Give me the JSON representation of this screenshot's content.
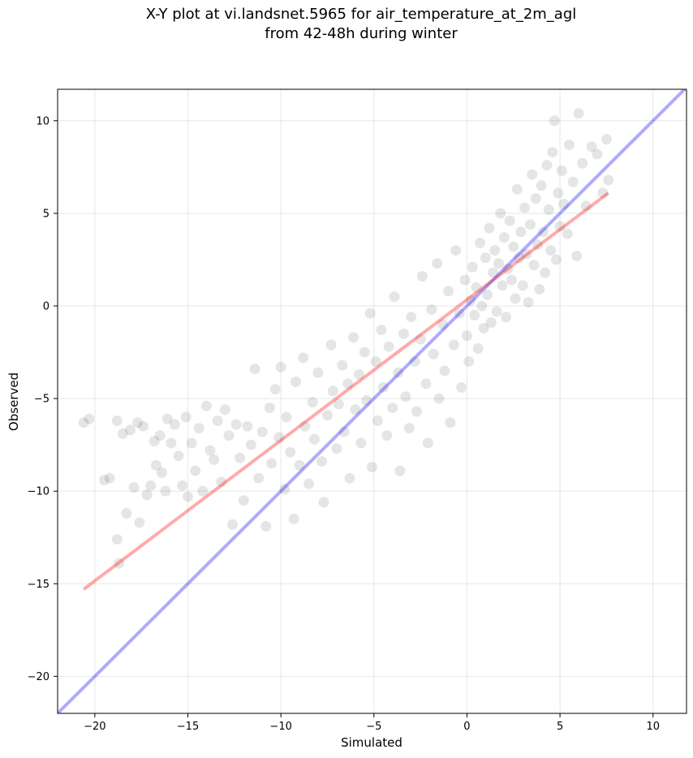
{
  "chart_data": {
    "type": "scatter",
    "title": "X-Y plot at vi.landsnet.5965 for air_temperature_at_2m_agl",
    "subtitle": "from 42-48h during winter",
    "xlabel": "Simulated",
    "ylabel": "Observed",
    "xlim": [
      -22,
      11.8
    ],
    "ylim": [
      -22,
      11.7
    ],
    "xticks": [
      -20,
      -15,
      -10,
      -5,
      0,
      5,
      10
    ],
    "yticks": [
      -20,
      -15,
      -10,
      -5,
      0,
      5,
      10
    ],
    "grid": true,
    "lines": [
      {
        "role": "one-to-one",
        "color": "#0000ff",
        "points": [
          [
            -22,
            -22
          ],
          [
            11.8,
            11.8
          ]
        ]
      },
      {
        "role": "regression-fit",
        "color": "#ff0000",
        "points": [
          [
            -20.6,
            -15.3
          ],
          [
            7.6,
            6.1
          ]
        ]
      }
    ],
    "point_color": "#000000",
    "points_sample": [
      [
        -20.6,
        -6.3
      ],
      [
        -20.3,
        -6.1
      ],
      [
        -19.5,
        -9.4
      ],
      [
        -19.2,
        -9.3
      ],
      [
        -18.8,
        -12.6
      ],
      [
        -18.7,
        -13.9
      ],
      [
        -18.8,
        -6.2
      ],
      [
        -18.5,
        -6.9
      ],
      [
        -18.3,
        -11.2
      ],
      [
        -18.1,
        -6.7
      ],
      [
        -17.9,
        -9.8
      ],
      [
        -17.7,
        -6.3
      ],
      [
        -17.6,
        -11.7
      ],
      [
        -17.4,
        -6.5
      ],
      [
        -17.2,
        -10.2
      ],
      [
        -17.0,
        -9.7
      ],
      [
        -16.8,
        -7.3
      ],
      [
        -16.7,
        -8.6
      ],
      [
        -16.5,
        -7.0
      ],
      [
        -16.4,
        -9.0
      ],
      [
        -16.2,
        -10.0
      ],
      [
        -16.1,
        -6.1
      ],
      [
        -15.9,
        -7.4
      ],
      [
        -15.7,
        -6.4
      ],
      [
        -15.5,
        -8.1
      ],
      [
        -15.3,
        -9.7
      ],
      [
        -15.1,
        -6.0
      ],
      [
        -15.0,
        -10.3
      ],
      [
        -14.8,
        -7.4
      ],
      [
        -14.6,
        -8.9
      ],
      [
        -14.4,
        -6.6
      ],
      [
        -14.2,
        -10.0
      ],
      [
        -14.0,
        -5.4
      ],
      [
        -13.8,
        -7.8
      ],
      [
        -13.6,
        -8.3
      ],
      [
        -13.4,
        -6.2
      ],
      [
        -13.2,
        -9.5
      ],
      [
        -13.0,
        -5.6
      ],
      [
        -12.8,
        -7.0
      ],
      [
        -12.6,
        -11.8
      ],
      [
        -12.4,
        -6.4
      ],
      [
        -12.2,
        -8.2
      ],
      [
        -12.0,
        -10.5
      ],
      [
        -11.8,
        -6.5
      ],
      [
        -11.6,
        -7.5
      ],
      [
        -11.4,
        -3.4
      ],
      [
        -11.2,
        -9.3
      ],
      [
        -11.0,
        -6.8
      ],
      [
        -10.8,
        -11.9
      ],
      [
        -10.6,
        -5.5
      ],
      [
        -10.5,
        -8.5
      ],
      [
        -10.3,
        -4.5
      ],
      [
        -10.1,
        -7.1
      ],
      [
        -10.0,
        -3.3
      ],
      [
        -9.8,
        -9.9
      ],
      [
        -9.7,
        -6.0
      ],
      [
        -9.5,
        -7.9
      ],
      [
        -9.3,
        -11.5
      ],
      [
        -9.2,
        -4.1
      ],
      [
        -9.0,
        -8.6
      ],
      [
        -8.8,
        -2.8
      ],
      [
        -8.7,
        -6.5
      ],
      [
        -8.5,
        -9.6
      ],
      [
        -8.3,
        -5.2
      ],
      [
        -8.2,
        -7.2
      ],
      [
        -8.0,
        -3.6
      ],
      [
        -7.8,
        -8.4
      ],
      [
        -7.7,
        -10.6
      ],
      [
        -7.5,
        -5.9
      ],
      [
        -7.3,
        -2.1
      ],
      [
        -7.2,
        -4.6
      ],
      [
        -7.0,
        -7.7
      ],
      [
        -6.9,
        -5.3
      ],
      [
        -6.7,
        -3.2
      ],
      [
        -6.6,
        -6.8
      ],
      [
        -6.4,
        -4.2
      ],
      [
        -6.3,
        -9.3
      ],
      [
        -6.1,
        -1.7
      ],
      [
        -6.0,
        -5.6
      ],
      [
        -5.8,
        -3.7
      ],
      [
        -5.7,
        -7.4
      ],
      [
        -5.5,
        -2.5
      ],
      [
        -5.4,
        -5.1
      ],
      [
        -5.2,
        -0.4
      ],
      [
        -5.1,
        -8.7
      ],
      [
        -4.9,
        -3.0
      ],
      [
        -4.8,
        -6.2
      ],
      [
        -4.6,
        -1.3
      ],
      [
        -4.5,
        -4.4
      ],
      [
        -4.3,
        -7.0
      ],
      [
        -4.2,
        -2.2
      ],
      [
        -4.0,
        -5.5
      ],
      [
        -3.9,
        0.5
      ],
      [
        -3.7,
        -3.6
      ],
      [
        -3.6,
        -8.9
      ],
      [
        -3.4,
        -1.5
      ],
      [
        -3.3,
        -4.9
      ],
      [
        -3.1,
        -6.6
      ],
      [
        -3.0,
        -0.6
      ],
      [
        -2.8,
        -3.0
      ],
      [
        -2.7,
        -5.7
      ],
      [
        -2.5,
        -1.8
      ],
      [
        -2.4,
        1.6
      ],
      [
        -2.2,
        -4.2
      ],
      [
        -2.1,
        -7.4
      ],
      [
        -1.9,
        -0.2
      ],
      [
        -1.8,
        -2.6
      ],
      [
        -1.6,
        2.3
      ],
      [
        -1.5,
        -5.0
      ],
      [
        -1.3,
        -1.0
      ],
      [
        -1.2,
        -3.5
      ],
      [
        -1.0,
        0.8
      ],
      [
        -0.9,
        -6.3
      ],
      [
        -0.7,
        -2.1
      ],
      [
        -0.6,
        3.0
      ],
      [
        -0.4,
        -0.4
      ],
      [
        -0.3,
        -4.4
      ],
      [
        -0.1,
        1.4
      ],
      [
        0.0,
        -1.6
      ],
      [
        0.1,
        -3.0
      ],
      [
        0.2,
        0.3
      ],
      [
        0.3,
        2.1
      ],
      [
        0.4,
        -0.5
      ],
      [
        0.5,
        1.0
      ],
      [
        0.6,
        -2.3
      ],
      [
        0.7,
        3.4
      ],
      [
        0.8,
        0.0
      ],
      [
        0.9,
        -1.2
      ],
      [
        1.0,
        2.6
      ],
      [
        1.1,
        0.6
      ],
      [
        1.2,
        4.2
      ],
      [
        1.3,
        -0.9
      ],
      [
        1.4,
        1.8
      ],
      [
        1.5,
        3.0
      ],
      [
        1.6,
        -0.3
      ],
      [
        1.7,
        2.3
      ],
      [
        1.8,
        5.0
      ],
      [
        1.9,
        1.1
      ],
      [
        2.0,
        3.7
      ],
      [
        2.1,
        -0.6
      ],
      [
        2.2,
        2.0
      ],
      [
        2.3,
        4.6
      ],
      [
        2.4,
        1.4
      ],
      [
        2.5,
        3.2
      ],
      [
        2.6,
        0.4
      ],
      [
        2.7,
        6.3
      ],
      [
        2.8,
        2.6
      ],
      [
        2.9,
        4.0
      ],
      [
        3.0,
        1.1
      ],
      [
        3.1,
        5.3
      ],
      [
        3.2,
        2.8
      ],
      [
        3.3,
        0.2
      ],
      [
        3.4,
        4.4
      ],
      [
        3.5,
        7.1
      ],
      [
        3.6,
        2.2
      ],
      [
        3.7,
        5.8
      ],
      [
        3.8,
        3.3
      ],
      [
        3.9,
        0.9
      ],
      [
        4.0,
        6.5
      ],
      [
        4.1,
        4.0
      ],
      [
        4.2,
        1.8
      ],
      [
        4.3,
        7.6
      ],
      [
        4.4,
        5.2
      ],
      [
        4.5,
        3.0
      ],
      [
        4.6,
        8.3
      ],
      [
        4.7,
        10.0
      ],
      [
        4.8,
        2.5
      ],
      [
        4.9,
        6.1
      ],
      [
        5.0,
        4.3
      ],
      [
        5.1,
        7.3
      ],
      [
        5.2,
        5.5
      ],
      [
        5.4,
        3.9
      ],
      [
        5.5,
        8.7
      ],
      [
        5.7,
        6.7
      ],
      [
        5.9,
        2.7
      ],
      [
        6.0,
        10.4
      ],
      [
        6.2,
        7.7
      ],
      [
        6.4,
        5.4
      ],
      [
        6.7,
        8.6
      ],
      [
        7.0,
        8.2
      ],
      [
        7.3,
        6.1
      ],
      [
        7.5,
        9.0
      ],
      [
        7.6,
        6.8
      ]
    ]
  }
}
